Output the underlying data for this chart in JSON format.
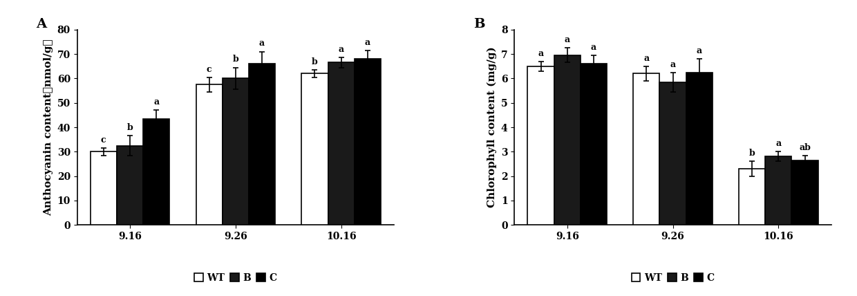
{
  "panel_A": {
    "title": "A",
    "ylabel": "Anthocyanin content（nmol/g）",
    "ylabel_ascii": "Anthocyanin content (nmol/g)",
    "groups": [
      "9.16",
      "9.26",
      "10.16"
    ],
    "series": {
      "WT": {
        "color": "#ffffff",
        "edgecolor": "#000000",
        "values": [
          30.0,
          57.5,
          62.0
        ],
        "errors": [
          1.5,
          3.0,
          1.5
        ],
        "labels": [
          "c",
          "c",
          "b"
        ]
      },
      "B": {
        "color": "#1a1a1a",
        "edgecolor": "#000000",
        "values": [
          32.5,
          60.0,
          66.5
        ],
        "errors": [
          4.0,
          4.5,
          2.0
        ],
        "labels": [
          "b",
          "b",
          "a"
        ]
      },
      "C": {
        "color": "#000000",
        "edgecolor": "#000000",
        "values": [
          43.5,
          66.0,
          68.0
        ],
        "errors": [
          3.5,
          5.0,
          3.5
        ],
        "labels": [
          "a",
          "a",
          "a"
        ]
      }
    },
    "ylim": [
      0,
      80
    ],
    "yticks": [
      0,
      10,
      20,
      30,
      40,
      50,
      60,
      70,
      80
    ]
  },
  "panel_B": {
    "title": "B",
    "ylabel": "Chlorophyll content (mg/g)",
    "groups": [
      "9.16",
      "9.26",
      "10.16"
    ],
    "series": {
      "WT": {
        "color": "#ffffff",
        "edgecolor": "#000000",
        "values": [
          6.5,
          6.2,
          2.3
        ],
        "errors": [
          0.2,
          0.3,
          0.3
        ],
        "labels": [
          "a",
          "a",
          "b"
        ]
      },
      "B": {
        "color": "#1a1a1a",
        "edgecolor": "#000000",
        "values": [
          6.95,
          5.85,
          2.82
        ],
        "errors": [
          0.3,
          0.4,
          0.2
        ],
        "labels": [
          "a",
          "a",
          "a"
        ]
      },
      "C": {
        "color": "#000000",
        "edgecolor": "#000000",
        "values": [
          6.6,
          6.25,
          2.65
        ],
        "errors": [
          0.35,
          0.55,
          0.2
        ],
        "labels": [
          "a",
          "a",
          "ab"
        ]
      }
    },
    "ylim": [
      0,
      8
    ],
    "yticks": [
      0,
      1,
      2,
      3,
      4,
      5,
      6,
      7,
      8
    ]
  },
  "legend_labels": [
    "WT",
    "B",
    "C"
  ],
  "legend_colors": [
    "#ffffff",
    "#1a1a1a",
    "#000000"
  ],
  "background_color": "#ffffff",
  "bar_width": 0.25,
  "label_fontsize": 9,
  "tick_fontsize": 10,
  "axis_label_fontsize": 11,
  "title_fontsize": 14,
  "legend_fontsize": 10
}
